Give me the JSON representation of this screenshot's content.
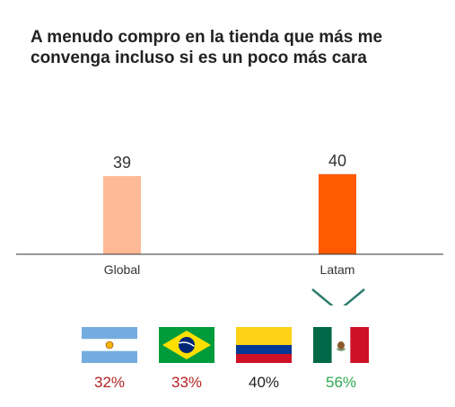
{
  "colors": {
    "global_bar": "#FFB996",
    "latam_bar": "#FF5A00",
    "axis": "#333333",
    "chevron": "#2E7D6E",
    "pct_low": "#B22222",
    "pct_mid": "#222222",
    "pct_high": "#2FA84F"
  },
  "chart_data": {
    "type": "bar",
    "title": "A menudo compro en la tienda que más me convenga incluso si es un poco más cara",
    "title_lines": [
      "A menudo compro en la tienda que más me",
      "convenga incluso si es un poco más cara"
    ],
    "categories": [
      "Global",
      "Latam"
    ],
    "values": [
      39,
      40
    ],
    "bar_colors": [
      "#FFB996",
      "#FF5A00"
    ],
    "data_labels": [
      "39",
      "40"
    ],
    "ylim": [
      0,
      50
    ],
    "grid": false,
    "legend": "none"
  },
  "countries": [
    {
      "flag": "argentina-flag-icon",
      "value": 32,
      "label": "32%",
      "color": "#B22222"
    },
    {
      "flag": "brazil-flag-icon",
      "value": 33,
      "label": "33%",
      "color": "#B22222"
    },
    {
      "flag": "colombia-flag-icon",
      "value": 40,
      "label": "40%",
      "color": "#222222"
    },
    {
      "flag": "mexico-flag-icon",
      "value": 56,
      "label": "56%",
      "color": "#2FA84F"
    }
  ]
}
